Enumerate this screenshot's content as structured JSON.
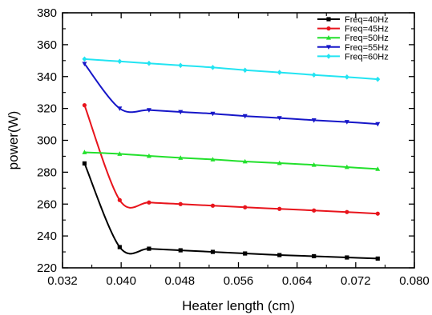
{
  "chart_data": {
    "type": "line",
    "xlabel": "Heater length (cm)",
    "ylabel": "power(W)",
    "xlim": [
      0.032,
      0.08
    ],
    "ylim": [
      220,
      380
    ],
    "xticks": [
      0.032,
      0.04,
      0.048,
      0.056,
      0.064,
      0.072,
      0.08
    ],
    "xtick_labels": [
      "0.032",
      "0.040",
      "0.048",
      "0.056",
      "0.064",
      "0.072",
      "0.080"
    ],
    "yticks": [
      220,
      240,
      260,
      280,
      300,
      320,
      340,
      360,
      380
    ],
    "ytick_labels": [
      "220",
      "240",
      "260",
      "280",
      "300",
      "320",
      "340",
      "360",
      "380"
    ],
    "grid": false,
    "legend_position": "top-right",
    "x": [
      0.035,
      0.0398,
      0.0438,
      0.0481,
      0.0525,
      0.0569,
      0.0616,
      0.0663,
      0.0708,
      0.075
    ],
    "series": [
      {
        "name": "Freq=40Hz",
        "color": "#000000",
        "marker": "square",
        "values": [
          285.5,
          233.0,
          232.0,
          231.0,
          230.0,
          229.0,
          228.0,
          227.3,
          226.5,
          225.8
        ]
      },
      {
        "name": "Freq=45Hz",
        "color": "#e8141c",
        "marker": "circle",
        "values": [
          322.0,
          262.5,
          261.0,
          260.0,
          259.0,
          258.0,
          257.0,
          256.0,
          255.0,
          254.0
        ]
      },
      {
        "name": "Freq=50Hz",
        "color": "#22e02c",
        "marker": "triangle-up",
        "values": [
          292.5,
          291.5,
          290.2,
          289.0,
          288.0,
          286.7,
          285.7,
          284.6,
          283.2,
          282.0
        ]
      },
      {
        "name": "Freq=55Hz",
        "color": "#1616c8",
        "marker": "triangle-down",
        "values": [
          348.0,
          320.0,
          319.0,
          317.8,
          316.7,
          315.2,
          314.0,
          312.6,
          311.5,
          310.2
        ]
      },
      {
        "name": "Freq=60Hz",
        "color": "#22e4f2",
        "marker": "diamond",
        "values": [
          351.0,
          349.5,
          348.3,
          347.0,
          345.7,
          344.0,
          342.6,
          341.0,
          339.7,
          338.3
        ]
      }
    ]
  }
}
